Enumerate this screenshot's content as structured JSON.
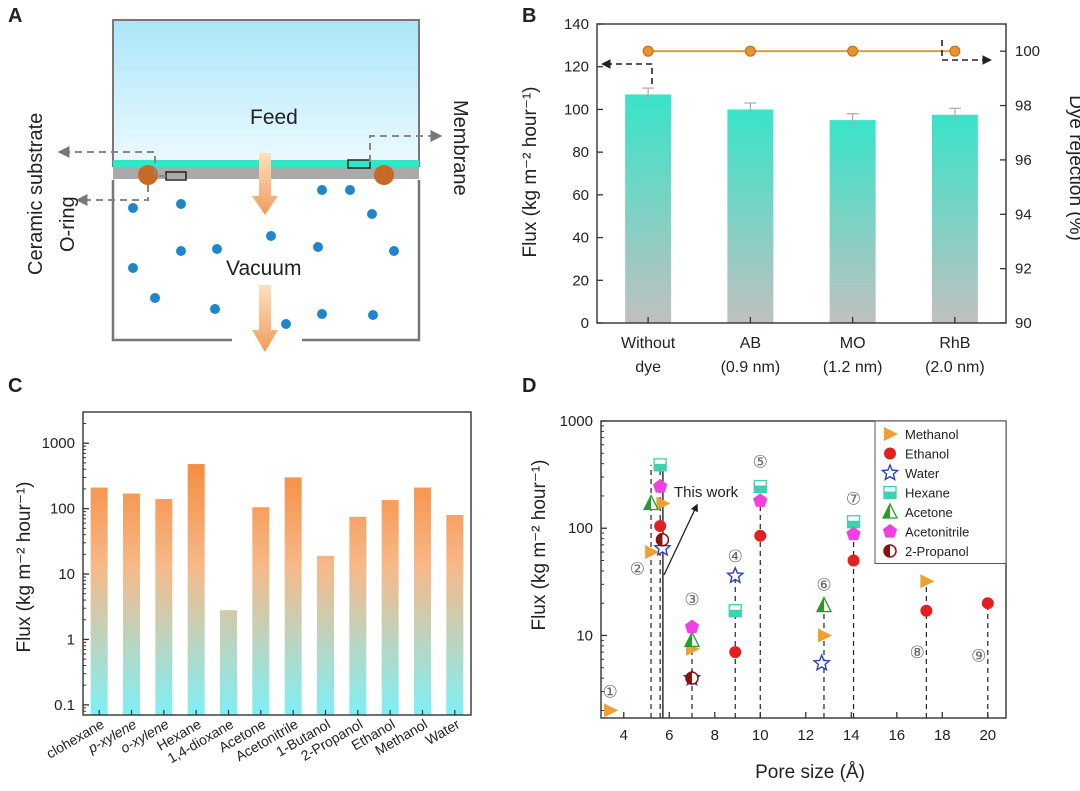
{
  "panels": {
    "a": {
      "letter": "A",
      "labels": {
        "feed": "Feed",
        "vacuum": "Vacuum",
        "ceramic": "Ceramic substrate",
        "oring": "O-ring",
        "membrane": "Membrane"
      }
    },
    "b": {
      "letter": "B"
    },
    "c": {
      "letter": "C"
    },
    "d": {
      "letter": "D"
    }
  },
  "chart_data": [
    {
      "id": "B",
      "type": "bar",
      "categories": [
        [
          "Without",
          "dye"
        ],
        [
          "AB",
          "(0.9 nm)"
        ],
        [
          "MO",
          "(1.2 nm)"
        ],
        [
          "RhB",
          "(2.0 nm)"
        ]
      ],
      "values": [
        107,
        100,
        95,
        97.5
      ],
      "errors": [
        3,
        3,
        3,
        3
      ],
      "ylabel": "Flux (kg m⁻² hour⁻¹)",
      "ylim": [
        0,
        140
      ],
      "yticks": [
        "0",
        "20",
        "40",
        "60",
        "80",
        "100",
        "120",
        "140"
      ],
      "y2label": "Dye rejection (%)",
      "y2lim": [
        90,
        101
      ],
      "y2ticks": [
        "90",
        "92",
        "94",
        "96",
        "98",
        "100"
      ],
      "rejection": [
        100,
        100,
        100,
        100
      ],
      "colors": {
        "bar_top": "#38e4c8",
        "bar_bottom": "#c0c0c0",
        "rejection": "#e8922b"
      }
    },
    {
      "id": "C",
      "type": "bar",
      "scale": "log",
      "categories": [
        "clohexane",
        "p-xylene",
        "o-xylene",
        "Hexane",
        "1,4-dioxane",
        "Acetone",
        "Acetonitrile",
        "1-Butanol",
        "2-Propanol",
        "Ethanol",
        "Methanol",
        "Water"
      ],
      "values": [
        210,
        170,
        140,
        480,
        2.8,
        105,
        300,
        19,
        75,
        135,
        210,
        80
      ],
      "ylabel": "Flux (kg m⁻² hour⁻¹)",
      "ylim": [
        0.07,
        3000
      ],
      "yticks": [
        "0.1",
        "1",
        "10",
        "100",
        "1000"
      ],
      "colors": {
        "bar_top": "#f47a1f",
        "bar_bottom": "#7ef0f5"
      }
    },
    {
      "id": "D",
      "type": "scatter",
      "scale": "log",
      "xlabel": "Pore size (Å)",
      "ylabel": "Flux (kg m⁻² hour⁻¹)",
      "xlim": [
        3,
        20.8
      ],
      "ylim": [
        1.7,
        1000
      ],
      "xticks": [
        "4",
        "6",
        "8",
        "10",
        "12",
        "14",
        "16",
        "18",
        "20"
      ],
      "yticks": [
        "10",
        "100",
        "1000"
      ],
      "annotation": "This work",
      "series": [
        {
          "name": "Methanol",
          "marker": "triangle-right",
          "color": "#f0a030",
          "points": [
            [
              3.4,
              2
            ],
            [
              5.2,
              60
            ],
            [
              5.7,
              170
            ],
            [
              7.0,
              7.5
            ],
            [
              12.8,
              10
            ],
            [
              17.3,
              32
            ]
          ]
        },
        {
          "name": "Ethanol",
          "marker": "circle",
          "color": "#e32020",
          "points": [
            [
              5.6,
              105
            ],
            [
              8.9,
              7
            ],
            [
              10.0,
              85
            ],
            [
              14.1,
              50
            ],
            [
              17.3,
              17
            ],
            [
              20.0,
              20
            ]
          ]
        },
        {
          "name": "Water",
          "marker": "star",
          "color": "#2b3fbf",
          "points": [
            [
              5.7,
              65
            ],
            [
              7.0,
              4
            ],
            [
              8.9,
              36
            ],
            [
              12.7,
              5.5
            ]
          ]
        },
        {
          "name": "Hexane",
          "marker": "square",
          "color": "#3fd0b0",
          "points": [
            [
              5.6,
              390
            ],
            [
              8.9,
              17
            ],
            [
              10.0,
              245
            ],
            [
              14.1,
              115
            ]
          ]
        },
        {
          "name": "Acetone",
          "marker": "triangle-up",
          "color": "#2a9a2a",
          "points": [
            [
              5.2,
              170
            ],
            [
              7.0,
              9
            ],
            [
              12.8,
              19
            ]
          ]
        },
        {
          "name": "Acetonitrile",
          "marker": "pentagon",
          "color": "#f040e0",
          "points": [
            [
              5.6,
              245
            ],
            [
              7.0,
              12
            ],
            [
              10.0,
              180
            ],
            [
              14.1,
              88
            ]
          ]
        },
        {
          "name": "2-Propanol",
          "marker": "half-circle",
          "color": "#8b1010",
          "points": [
            [
              5.7,
              78
            ],
            [
              7.0,
              4
            ]
          ]
        }
      ],
      "refs": [
        {
          "label": "①",
          "x": 3.4,
          "y": 3.0
        },
        {
          "label": "②",
          "x": 4.6,
          "y": 42
        },
        {
          "label": "③",
          "x": 7.0,
          "y": 22
        },
        {
          "label": "④",
          "x": 8.9,
          "y": 55
        },
        {
          "label": "⑤",
          "x": 10.0,
          "y": 420
        },
        {
          "label": "⑥",
          "x": 12.8,
          "y": 30
        },
        {
          "label": "⑦",
          "x": 14.1,
          "y": 190
        },
        {
          "label": "⑧",
          "x": 16.9,
          "y": 7
        },
        {
          "label": "⑨",
          "x": 19.6,
          "y": 6.5
        }
      ],
      "dropLines": [
        5.2,
        5.6,
        7.0,
        8.9,
        10.0,
        12.8,
        14.1,
        17.3,
        20.0
      ]
    }
  ]
}
